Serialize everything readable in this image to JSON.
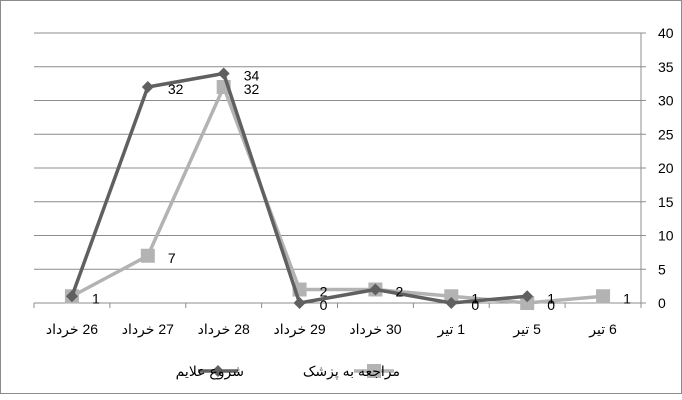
{
  "chart_data": {
    "type": "line",
    "categories": [
      "26 خرداد",
      "27 خرداد",
      "28 خرداد",
      "29 خرداد",
      "30 خرداد",
      "1 تیر",
      "5 تیر",
      "6 تیر"
    ],
    "series": [
      {
        "name": "شروع علایم",
        "values": [
          1,
          32,
          34,
          0,
          2,
          0,
          1,
          null
        ],
        "labels": [
          "",
          "32",
          "34",
          "0",
          "",
          "0",
          "1",
          ""
        ],
        "color": "#606060",
        "marker": "diamond"
      },
      {
        "name": "مراجعه به پزشک",
        "values": [
          1,
          7,
          32,
          2,
          2,
          1,
          0,
          1
        ],
        "labels": [
          "1",
          "7",
          "32",
          "2",
          "2",
          "1",
          "0",
          "1"
        ],
        "color": "#b3b3b3",
        "marker": "square"
      }
    ],
    "ylim": [
      0,
      40
    ],
    "yticks": [
      0,
      5,
      10,
      15,
      20,
      25,
      30,
      35,
      40
    ],
    "y_axis_side": "right",
    "grid": true,
    "legend_position": "bottom",
    "title": "",
    "xlabel": "",
    "ylabel": ""
  }
}
